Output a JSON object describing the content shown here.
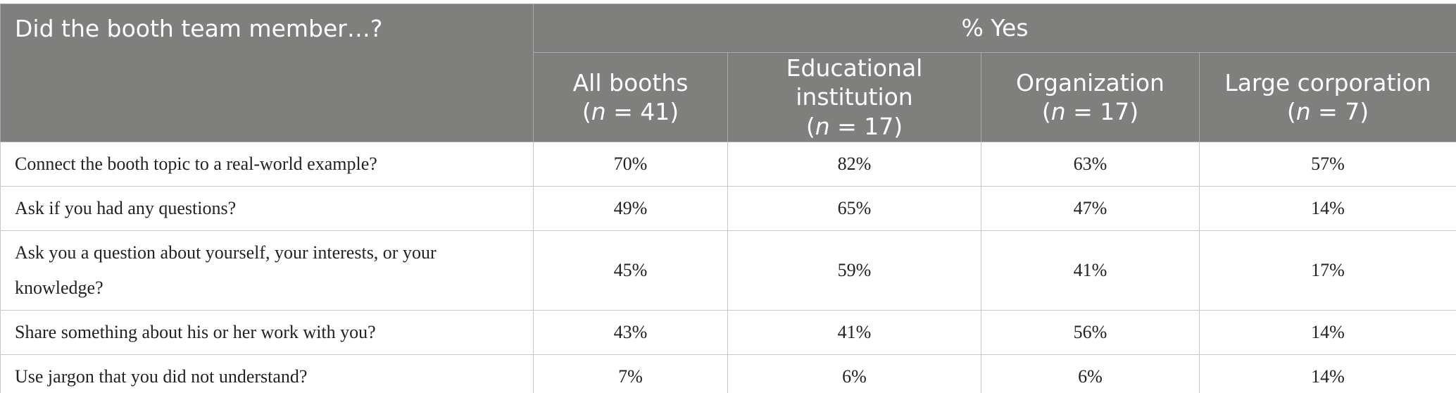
{
  "table": {
    "header": {
      "question": "Did the booth team member…?",
      "group": "% Yes",
      "columns": [
        {
          "label": "All booths",
          "n": "(n = 41)"
        },
        {
          "label": "Educational institution",
          "n": "(n = 17)"
        },
        {
          "label": "Organization",
          "n": "(n = 17)"
        },
        {
          "label": "Large corporation",
          "n": "(n = 7)"
        }
      ]
    },
    "rows": [
      [
        "Connect the booth topic to a real-world example?",
        "70%",
        "82%",
        "63%",
        "57%"
      ],
      [
        "Ask if you had any questions?",
        "49%",
        "65%",
        "47%",
        "14%"
      ],
      [
        "Ask you a question about yourself, your interests, or your knowledge?",
        "45%",
        "59%",
        "41%",
        "17%"
      ],
      [
        "Share something about his or her work with you?",
        "43%",
        "41%",
        "56%",
        "14%"
      ],
      [
        "Use jargon that you did not understand?",
        "7%",
        "6%",
        "6%",
        "14%"
      ]
    ]
  }
}
